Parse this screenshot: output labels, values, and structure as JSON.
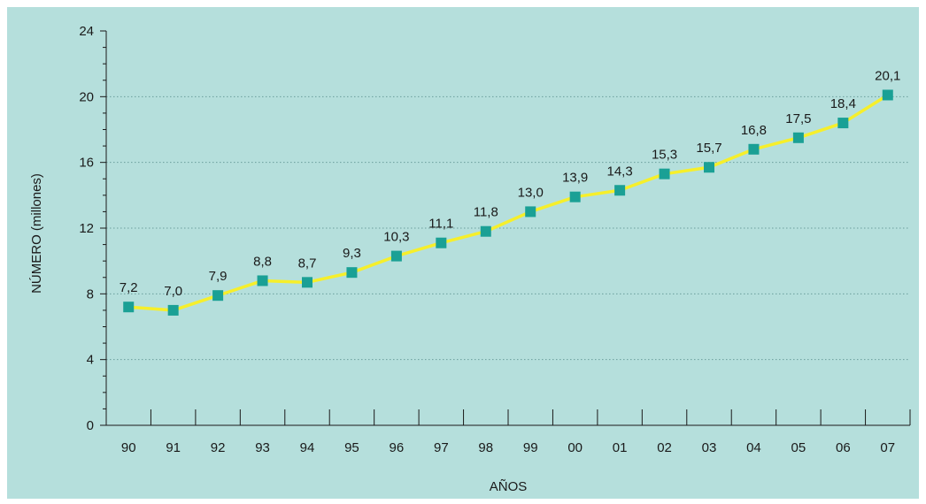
{
  "chart_data": {
    "type": "line",
    "categories": [
      "90",
      "91",
      "92",
      "93",
      "94",
      "95",
      "96",
      "97",
      "98",
      "99",
      "00",
      "01",
      "02",
      "03",
      "04",
      "05",
      "06",
      "07"
    ],
    "series": [
      {
        "values": [
          7.2,
          7.0,
          7.9,
          8.8,
          8.7,
          9.3,
          10.3,
          11.1,
          11.8,
          13.0,
          13.9,
          14.3,
          15.3,
          15.7,
          16.8,
          17.5,
          18.4,
          20.1
        ],
        "labels": [
          "7,2",
          "7,0",
          "7,9",
          "8,8",
          "8,7",
          "9,3",
          "10,3",
          "11,1",
          "11,8",
          "13,0",
          "13,9",
          "14,3",
          "15,3",
          "15,7",
          "16,8",
          "17,5",
          "18,4",
          "20,1"
        ]
      }
    ],
    "title": "",
    "xlabel": "AÑOS",
    "ylabel": "NÚMERO (millones)",
    "ylim": [
      0,
      24
    ],
    "yticks": [
      0,
      4,
      8,
      12,
      16,
      20,
      24
    ],
    "ytick_labels": [
      "0",
      "4",
      "8",
      "12",
      "16",
      "20",
      "24"
    ],
    "grid": "horizontal dotted",
    "legend": "none",
    "colors": {
      "background": "#b5dfdc",
      "line": "#f6ef2b",
      "marker": "#1aa095",
      "grid": "#6a9e9b",
      "axis": "#1a1a1a"
    }
  }
}
